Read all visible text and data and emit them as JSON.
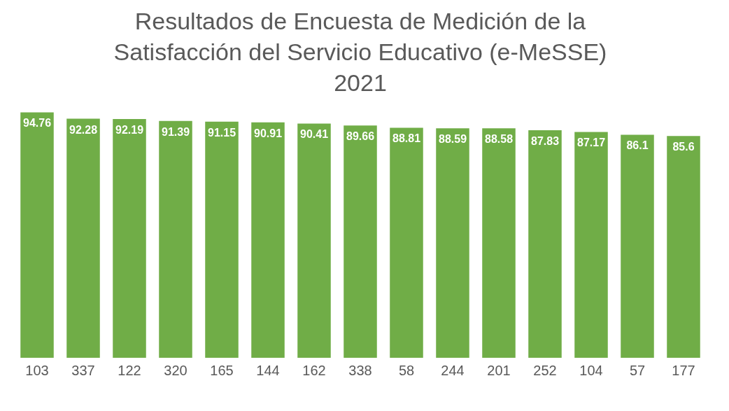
{
  "chart_data": {
    "type": "bar",
    "title": "Resultados de Encuesta de Medición de la\nSatisfacción del Servicio Educativo (e-MeSSE)\n2021",
    "categories": [
      "103",
      "337",
      "122",
      "320",
      "165",
      "144",
      "162",
      "338",
      "58",
      "244",
      "201",
      "252",
      "104",
      "57",
      "177"
    ],
    "values": [
      94.76,
      92.28,
      92.19,
      91.39,
      91.15,
      90.91,
      90.41,
      89.66,
      88.81,
      88.59,
      88.58,
      87.83,
      87.17,
      86.1,
      85.6
    ],
    "color": "#70ad47",
    "tick_labels": "x",
    "data_labels": true
  }
}
